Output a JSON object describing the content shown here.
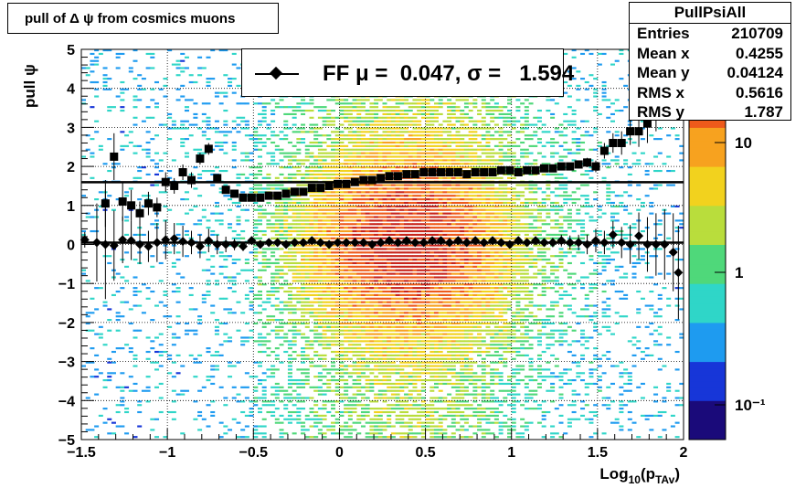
{
  "title": "pull of Δ ψ from cosmics muons",
  "stats": {
    "name": "PullPsiAll",
    "rows": [
      {
        "label": "Entries",
        "value": "210709"
      },
      {
        "label": "Mean x",
        "value": "0.4255"
      },
      {
        "label": "Mean y",
        "value": "0.04124"
      },
      {
        "label": "RMS x",
        "value": "0.5616"
      },
      {
        "label": "RMS y",
        "value": "1.787"
      }
    ]
  },
  "legend": {
    "text": "FF μ =  0.047, σ =   1.594"
  },
  "chart_data": {
    "type": "heatmap",
    "xlabel": "Log10(pTAv)",
    "xlabel_main": "Log",
    "xlabel_sub1": "10",
    "xlabel_mid": "(p",
    "xlabel_sub2": "TAv",
    "xlabel_end": ")",
    "ylabel": "pull ψ",
    "xlim": [
      -1.5,
      2
    ],
    "ylim": [
      -5,
      5
    ],
    "x_ticks": [
      "−1.5",
      "−1",
      "−0.5",
      "0",
      "0.5",
      "1",
      "1.5",
      "2"
    ],
    "y_ticks": [
      "−5",
      "−4",
      "−3",
      "−2",
      "−1",
      "0",
      "1",
      "2",
      "3",
      "4",
      "5"
    ],
    "z_scale": "log",
    "z_ticks": [
      "10",
      "1",
      "10⁻¹"
    ],
    "grid": true,
    "colormap": [
      "#1a0a7a",
      "#1736d8",
      "#1e9bf0",
      "#2fd6c8",
      "#4fd87a",
      "#b9dd3c",
      "#f2d21e",
      "#f7a21f",
      "#ee5a1b",
      "#c8241a"
    ],
    "mean_points": {
      "x": [
        -1.48,
        -1.41,
        -1.36,
        -1.31,
        -1.26,
        -1.21,
        -1.16,
        -1.11,
        -1.06,
        -1.01,
        -0.96,
        -0.91,
        -0.86,
        -0.81,
        -0.76,
        -0.71,
        -0.66,
        -0.61,
        -0.56,
        -0.51,
        -0.46,
        -0.41,
        -0.36,
        -0.31,
        -0.26,
        -0.21,
        -0.16,
        -0.11,
        -0.06,
        -0.01,
        0.04,
        0.09,
        0.14,
        0.19,
        0.24,
        0.29,
        0.34,
        0.39,
        0.44,
        0.49,
        0.54,
        0.59,
        0.64,
        0.69,
        0.74,
        0.79,
        0.84,
        0.89,
        0.94,
        0.99,
        1.04,
        1.09,
        1.14,
        1.19,
        1.24,
        1.29,
        1.34,
        1.39,
        1.44,
        1.49,
        1.54,
        1.59,
        1.64,
        1.69,
        1.74,
        1.79,
        1.84,
        1.89,
        1.94,
        1.97
      ],
      "y": [
        0.12,
        0.05,
        0.0,
        -0.03,
        0.12,
        0.1,
        0.0,
        -0.05,
        0.05,
        0.12,
        0.15,
        0.08,
        0.05,
        -0.05,
        0.1,
        0.0,
        0.0,
        0.0,
        -0.05,
        0.1,
        0.0,
        0.05,
        0.05,
        0.0,
        0.05,
        0.05,
        0.1,
        0.05,
        0.0,
        0.05,
        0.05,
        0.05,
        0.05,
        0.0,
        0.05,
        0.1,
        0.05,
        0.1,
        0.05,
        0.05,
        0.1,
        0.1,
        0.05,
        0.1,
        0.05,
        0.1,
        0.05,
        0.1,
        0.05,
        0.0,
        0.1,
        0.05,
        0.1,
        0.05,
        0.05,
        0.1,
        0.05,
        0.05,
        0.0,
        0.1,
        0.05,
        0.25,
        0.05,
        0.0,
        0.22,
        0.0,
        0.0,
        0.0,
        -0.2,
        -0.72
      ],
      "err": [
        0.2,
        1.0,
        1.4,
        0.9,
        0.6,
        0.5,
        0.5,
        0.4,
        0.5,
        0.5,
        0.4,
        0.4,
        0.3,
        0.3,
        0.3,
        0.25,
        0.2,
        0.15,
        0.12,
        0.1,
        0.08,
        0.07,
        0.06,
        0.05,
        0.05,
        0.05,
        0.04,
        0.04,
        0.04,
        0.04,
        0.04,
        0.04,
        0.04,
        0.04,
        0.04,
        0.04,
        0.04,
        0.04,
        0.04,
        0.04,
        0.04,
        0.04,
        0.04,
        0.04,
        0.04,
        0.04,
        0.05,
        0.05,
        0.05,
        0.05,
        0.06,
        0.07,
        0.08,
        0.1,
        0.12,
        0.15,
        0.18,
        0.2,
        0.25,
        0.3,
        0.3,
        0.35,
        0.4,
        0.5,
        0.6,
        0.7,
        0.8,
        0.9,
        1.0,
        1.2
      ]
    },
    "rms_points": {
      "x": [
        -1.36,
        -1.31,
        -1.26,
        -1.21,
        -1.16,
        -1.11,
        -1.06,
        -1.01,
        -0.96,
        -0.91,
        -0.86,
        -0.81,
        -0.76,
        -0.71,
        -0.66,
        -0.61,
        -0.56,
        -0.51,
        -0.46,
        -0.41,
        -0.36,
        -0.31,
        -0.26,
        -0.21,
        -0.16,
        -0.11,
        -0.06,
        -0.01,
        0.04,
        0.09,
        0.14,
        0.19,
        0.24,
        0.29,
        0.34,
        0.39,
        0.44,
        0.49,
        0.54,
        0.59,
        0.64,
        0.69,
        0.74,
        0.79,
        0.84,
        0.89,
        0.94,
        0.99,
        1.04,
        1.09,
        1.14,
        1.19,
        1.24,
        1.29,
        1.34,
        1.39,
        1.44,
        1.49,
        1.54,
        1.59,
        1.64,
        1.69,
        1.74,
        1.79,
        1.84,
        1.89,
        1.94
      ],
      "y": [
        1.05,
        2.25,
        1.1,
        1.0,
        0.8,
        1.05,
        0.95,
        1.6,
        1.5,
        1.85,
        1.65,
        2.2,
        2.45,
        1.7,
        1.4,
        1.3,
        1.2,
        1.2,
        1.2,
        1.25,
        1.25,
        1.3,
        1.35,
        1.35,
        1.45,
        1.45,
        1.5,
        1.55,
        1.55,
        1.6,
        1.65,
        1.65,
        1.7,
        1.75,
        1.75,
        1.8,
        1.8,
        1.85,
        1.85,
        1.85,
        1.85,
        1.85,
        1.8,
        1.85,
        1.85,
        1.85,
        1.9,
        1.9,
        1.85,
        1.9,
        1.9,
        1.95,
        1.95,
        2.0,
        2.0,
        2.05,
        2.1,
        2.0,
        2.4,
        2.6,
        2.6,
        2.9,
        2.9,
        3.1,
        3.5,
        4.25,
        4.8
      ],
      "err": [
        0.6,
        0.6,
        0.5,
        0.4,
        0.3,
        0.3,
        0.25,
        0.25,
        0.2,
        0.2,
        0.2,
        0.15,
        0.15,
        0.1,
        0.08,
        0.07,
        0.05,
        0.05,
        0.04,
        0.04,
        0.03,
        0.03,
        0.03,
        0.03,
        0.03,
        0.03,
        0.03,
        0.03,
        0.03,
        0.03,
        0.03,
        0.03,
        0.03,
        0.03,
        0.03,
        0.03,
        0.03,
        0.03,
        0.03,
        0.03,
        0.03,
        0.03,
        0.03,
        0.03,
        0.03,
        0.03,
        0.03,
        0.03,
        0.04,
        0.04,
        0.05,
        0.05,
        0.06,
        0.07,
        0.08,
        0.1,
        0.12,
        0.15,
        0.2,
        0.25,
        0.3,
        0.35,
        0.4,
        0.5,
        0.6,
        0.7,
        0.8
      ]
    },
    "fit_lines": [
      {
        "y": 0.047
      },
      {
        "y": 1.594
      }
    ]
  }
}
